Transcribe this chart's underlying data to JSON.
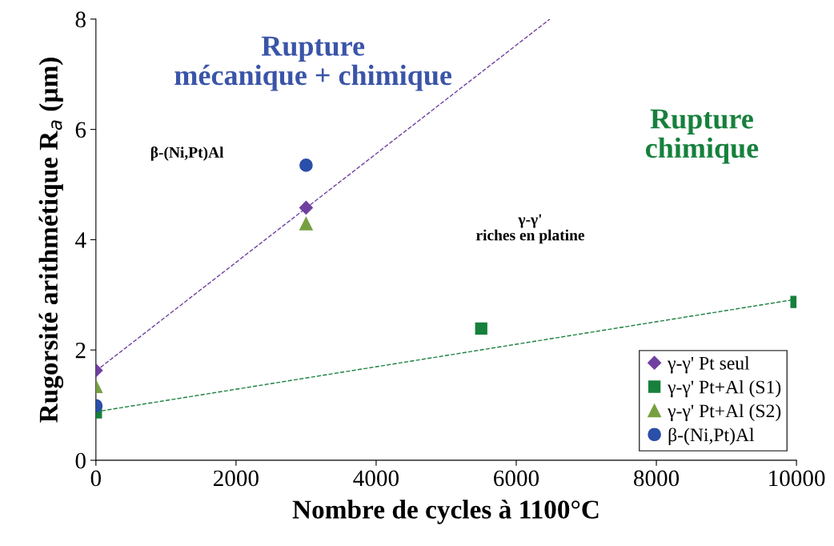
{
  "chart_data": {
    "type": "scatter",
    "xlabel": "Nombre de cycles à 1100°C",
    "ylabel": "Rugorsité arithmétique R$_{a}$ (µm)",
    "xlim": [
      0,
      10000
    ],
    "xticks": [
      0,
      2000,
      4000,
      6000,
      8000,
      10000
    ],
    "ylim": [
      0,
      8
    ],
    "yticks": [
      0,
      2,
      4,
      6,
      8
    ],
    "grid": false,
    "legend": "bottom right",
    "series": [
      {
        "type": "line",
        "color": "#7040a0",
        "line_style": "dashed",
        "marker": "none",
        "x": [
          0,
          6480
        ],
        "values": [
          1.62,
          8.0
        ]
      },
      {
        "type": "line",
        "color": "#1a8040",
        "line_style": "dashed",
        "marker": "none",
        "x": [
          0,
          10000
        ],
        "values": [
          0.88,
          2.92
        ]
      },
      {
        "name": "γ-γ' Pt seul",
        "color": "#7040a0",
        "marker": "diamond",
        "x": [
          0,
          3000
        ],
        "values": [
          1.63,
          4.58
        ]
      },
      {
        "name": "γ-γ' Pt+Al (S1)",
        "color": "#16803c",
        "marker": "square",
        "x": [
          0,
          5500,
          10000
        ],
        "values": [
          0.87,
          2.39,
          2.87
        ]
      },
      {
        "name": "γ-γ' Pt+Al (S2)",
        "color": "#76a040",
        "marker": "triangle",
        "x": [
          0,
          3000
        ],
        "values": [
          1.34,
          4.29
        ]
      },
      {
        "name": "β-(Ni,Pt)Al",
        "color": "#2a4fa8",
        "marker": "circle",
        "x": [
          0,
          3000
        ],
        "values": [
          0.99,
          5.35
        ]
      }
    ],
    "annotations": [
      "Rupture\nmécanique + chimique",
      "Rupture\nchimique",
      "β-(Ni,Pt)Al",
      "γ-γ'\nriches en platine"
    ]
  }
}
